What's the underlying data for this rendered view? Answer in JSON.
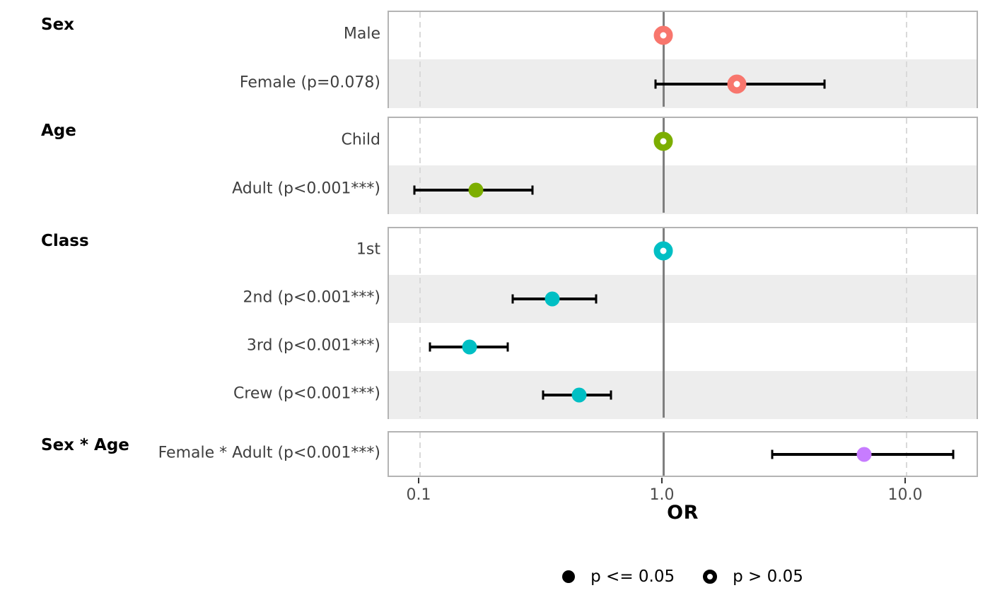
{
  "chart_data": {
    "type": "forest",
    "xlabel": "OR",
    "x_scale": "log10",
    "x_range": [
      0.075,
      20
    ],
    "x_ticks": [
      0.1,
      1.0,
      10.0
    ],
    "x_tick_labels": [
      "0.1",
      "1.0",
      "10.0"
    ],
    "reference_line": 1.0,
    "grid": "dashed-verticals-at-ticks",
    "legend_position": "bottom",
    "legend": [
      {
        "label": "p <= 0.05",
        "marker": "filled",
        "color": "#000000"
      },
      {
        "label": "p > 0.05",
        "marker": "open",
        "color": "#000000"
      }
    ],
    "groups": [
      {
        "title": "Sex",
        "color": "#F8766D",
        "rows": [
          {
            "label": "Male",
            "or": 1.0,
            "reference": true,
            "marker": "open"
          },
          {
            "label": "Female (p=0.078)",
            "or": 2.0,
            "ci_low": 0.93,
            "ci_high": 4.6,
            "marker": "open"
          }
        ]
      },
      {
        "title": "Age",
        "color": "#7CAE00",
        "rows": [
          {
            "label": "Child",
            "or": 1.0,
            "reference": true,
            "marker": "open"
          },
          {
            "label": "Adult (p<0.001***)",
            "or": 0.17,
            "ci_low": 0.095,
            "ci_high": 0.29,
            "marker": "filled"
          }
        ]
      },
      {
        "title": "Class",
        "color": "#00BFC4",
        "rows": [
          {
            "label": "1st",
            "or": 1.0,
            "reference": true,
            "marker": "open"
          },
          {
            "label": "2nd (p<0.001***)",
            "or": 0.35,
            "ci_low": 0.24,
            "ci_high": 0.53,
            "marker": "filled"
          },
          {
            "label": "3rd (p<0.001***)",
            "or": 0.16,
            "ci_low": 0.11,
            "ci_high": 0.23,
            "marker": "filled"
          },
          {
            "label": "Crew (p<0.001***)",
            "or": 0.45,
            "ci_low": 0.32,
            "ci_high": 0.61,
            "marker": "filled"
          }
        ]
      },
      {
        "title": "Sex * Age",
        "color": "#C77CFF",
        "rows": [
          {
            "label": "Female * Adult (p<0.001***)",
            "or": 6.7,
            "ci_low": 2.8,
            "ci_high": 15.6,
            "marker": "filled"
          }
        ]
      }
    ]
  }
}
